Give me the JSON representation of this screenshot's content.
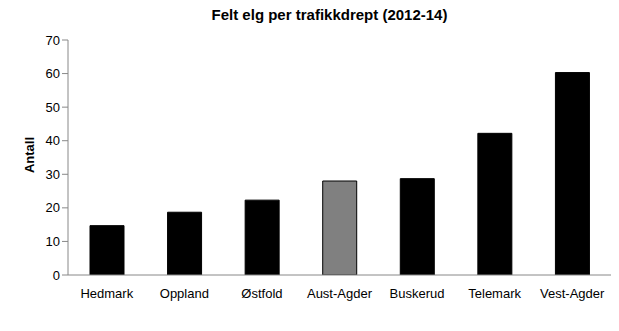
{
  "chart_data": {
    "type": "bar",
    "title": "Felt elg per trafikkdrept (2012-14)",
    "y_label": "Antall",
    "categories": [
      "Hedmark",
      "Oppland",
      "Østfold",
      "Aust-Agder",
      "Buskerud",
      "Telemark",
      "Vest-Agder"
    ],
    "values": [
      14.7,
      18.7,
      22.3,
      28.0,
      28.7,
      42.2,
      60.3
    ],
    "colors": [
      "#000000",
      "#000000",
      "#000000",
      "#808080",
      "#000000",
      "#000000",
      "#000000"
    ],
    "ylim": [
      0,
      70
    ],
    "yticks": [
      0,
      10,
      20,
      30,
      40,
      50,
      60,
      70
    ],
    "grid": false
  }
}
